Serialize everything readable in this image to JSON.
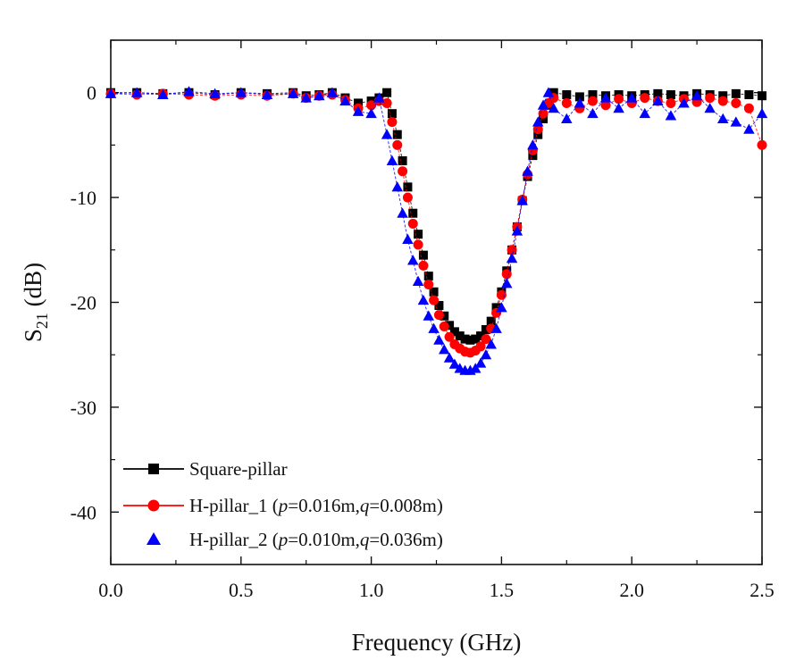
{
  "chart_data": {
    "type": "scatter",
    "title": "",
    "xlabel": "Frequency (GHz)",
    "ylabel_main": "S",
    "ylabel_sub": "21",
    "ylabel_unit": " (dB)",
    "xlim": [
      0.0,
      2.5
    ],
    "ylim": [
      -45,
      5
    ],
    "xticks": [
      0.0,
      0.5,
      1.0,
      1.5,
      2.0,
      2.5
    ],
    "xtick_labels": [
      "0.0",
      "0.5",
      "1.0",
      "1.5",
      "2.0",
      "2.5"
    ],
    "yticks": [
      0,
      -10,
      -20,
      -30,
      -40
    ],
    "ytick_labels": [
      "0",
      "-10",
      "-20",
      "-30",
      "-40"
    ],
    "grid": false,
    "legend_position": "bottom-left",
    "series": [
      {
        "name": "Square-pillar",
        "label": "Square-pillar",
        "color": "#000000",
        "marker": "square",
        "x": [
          0.0,
          0.1,
          0.2,
          0.3,
          0.4,
          0.5,
          0.6,
          0.7,
          0.75,
          0.8,
          0.85,
          0.9,
          0.95,
          1.0,
          1.03,
          1.06,
          1.08,
          1.1,
          1.12,
          1.14,
          1.16,
          1.18,
          1.2,
          1.22,
          1.24,
          1.26,
          1.28,
          1.3,
          1.32,
          1.34,
          1.36,
          1.38,
          1.4,
          1.42,
          1.44,
          1.46,
          1.48,
          1.5,
          1.52,
          1.54,
          1.56,
          1.58,
          1.6,
          1.62,
          1.64,
          1.66,
          1.68,
          1.7,
          1.75,
          1.8,
          1.85,
          1.9,
          1.95,
          2.0,
          2.05,
          2.1,
          2.15,
          2.2,
          2.25,
          2.3,
          2.35,
          2.4,
          2.45,
          2.5
        ],
        "y": [
          0,
          0,
          -0.1,
          0,
          -0.2,
          0,
          -0.1,
          0,
          -0.3,
          -0.2,
          0,
          -0.5,
          -1,
          -0.8,
          -0.5,
          0,
          -2,
          -4,
          -6.5,
          -9,
          -11.5,
          -13.5,
          -15.5,
          -17.5,
          -19,
          -20.3,
          -21.3,
          -22.2,
          -22.8,
          -23.2,
          -23.5,
          -23.6,
          -23.5,
          -23.2,
          -22.6,
          -21.8,
          -20.5,
          -19,
          -17,
          -15,
          -12.8,
          -10.3,
          -8,
          -6,
          -4,
          -2.5,
          -1.2,
          0,
          -0.2,
          -0.4,
          -0.2,
          -0.3,
          -0.2,
          -0.3,
          -0.2,
          -0.1,
          -0.2,
          -0.3,
          -0.1,
          -0.2,
          -0.3,
          -0.1,
          -0.2,
          -0.3
        ]
      },
      {
        "name": "H-pillar_1",
        "label": "H-pillar_1 (p=0.016m,q=0.008m)",
        "label_prefix": "H-pillar_1 (",
        "label_p": "p",
        "label_p_value": "=0.016m,",
        "label_q": "q",
        "label_q_value": "=0.008m)",
        "color": "#ff0000",
        "marker": "circle",
        "x": [
          0.0,
          0.1,
          0.2,
          0.3,
          0.4,
          0.5,
          0.6,
          0.7,
          0.75,
          0.8,
          0.85,
          0.9,
          0.95,
          1.0,
          1.03,
          1.06,
          1.08,
          1.1,
          1.12,
          1.14,
          1.16,
          1.18,
          1.2,
          1.22,
          1.24,
          1.26,
          1.28,
          1.3,
          1.32,
          1.34,
          1.36,
          1.38,
          1.4,
          1.42,
          1.44,
          1.46,
          1.48,
          1.5,
          1.52,
          1.54,
          1.56,
          1.58,
          1.6,
          1.62,
          1.64,
          1.66,
          1.68,
          1.7,
          1.75,
          1.8,
          1.85,
          1.9,
          1.95,
          2.0,
          2.05,
          2.1,
          2.15,
          2.2,
          2.25,
          2.3,
          2.35,
          2.4,
          2.45,
          2.5
        ],
        "y": [
          -0.1,
          -0.2,
          -0.1,
          -0.2,
          -0.3,
          -0.2,
          -0.3,
          -0.1,
          -0.5,
          -0.3,
          -0.2,
          -0.7,
          -1.5,
          -1.2,
          -0.8,
          -1,
          -2.8,
          -5,
          -7.5,
          -10,
          -12.5,
          -14.5,
          -16.5,
          -18.3,
          -19.8,
          -21.2,
          -22.3,
          -23.3,
          -24,
          -24.4,
          -24.7,
          -24.8,
          -24.6,
          -24.2,
          -23.5,
          -22.5,
          -21,
          -19.3,
          -17.3,
          -15,
          -12.8,
          -10.2,
          -7.8,
          -5.5,
          -3.5,
          -2,
          -1,
          -0.5,
          -1,
          -1.5,
          -0.8,
          -1.2,
          -0.6,
          -1,
          -0.5,
          -0.8,
          -1,
          -0.6,
          -0.9,
          -0.5,
          -0.8,
          -1,
          -1.5,
          -5
        ]
      },
      {
        "name": "H-pillar_2",
        "label": "H-pillar_2 (p=0.010m,q=0.036m)",
        "label_prefix": "H-pillar_2 (",
        "label_p": "p",
        "label_p_value": "=0.010m,",
        "label_q": "q",
        "label_q_value": "=0.036m)",
        "color": "#0000ff",
        "marker": "triangle",
        "x": [
          0.0,
          0.1,
          0.2,
          0.3,
          0.4,
          0.5,
          0.6,
          0.7,
          0.75,
          0.8,
          0.85,
          0.9,
          0.95,
          1.0,
          1.03,
          1.06,
          1.08,
          1.1,
          1.12,
          1.14,
          1.16,
          1.18,
          1.2,
          1.22,
          1.24,
          1.26,
          1.28,
          1.3,
          1.32,
          1.34,
          1.36,
          1.38,
          1.4,
          1.42,
          1.44,
          1.46,
          1.48,
          1.5,
          1.52,
          1.54,
          1.56,
          1.58,
          1.6,
          1.62,
          1.64,
          1.66,
          1.68,
          1.7,
          1.75,
          1.8,
          1.85,
          1.9,
          1.95,
          2.0,
          2.05,
          2.1,
          2.15,
          2.2,
          2.25,
          2.3,
          2.35,
          2.4,
          2.45,
          2.5
        ],
        "y": [
          -0.1,
          0,
          -0.2,
          0.1,
          -0.1,
          0,
          -0.2,
          -0.1,
          -0.5,
          -0.3,
          0,
          -0.8,
          -1.8,
          -2,
          -0.5,
          -4,
          -6.5,
          -9,
          -11.5,
          -14,
          -16,
          -18,
          -19.8,
          -21.3,
          -22.5,
          -23.6,
          -24.5,
          -25.3,
          -25.9,
          -26.3,
          -26.5,
          -26.5,
          -26.3,
          -25.8,
          -25,
          -24,
          -22.5,
          -20.5,
          -18.2,
          -15.8,
          -13.2,
          -10.3,
          -7.5,
          -5,
          -2.8,
          -1.2,
          0,
          -1.5,
          -2.5,
          -1,
          -2,
          -0.5,
          -1.5,
          -0.5,
          -2,
          -0.8,
          -2.2,
          -1,
          -0.3,
          -1.5,
          -2.5,
          -2.8,
          -3.5,
          -2
        ]
      }
    ]
  }
}
